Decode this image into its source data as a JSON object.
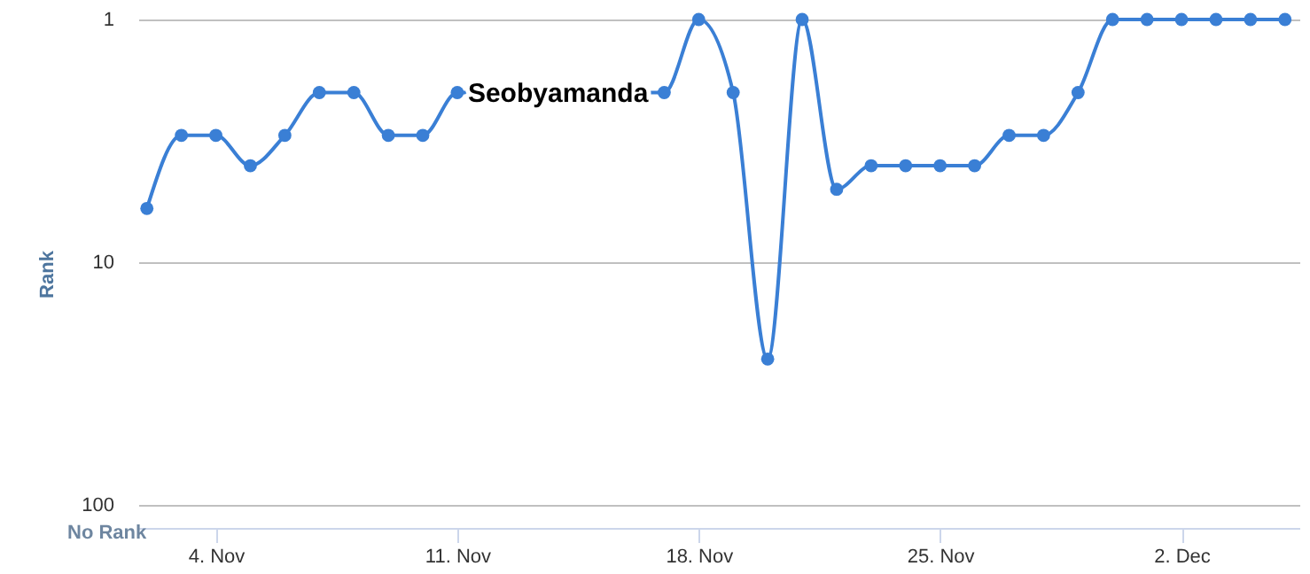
{
  "chart_data": {
    "type": "line",
    "ylabel": "Rank",
    "annotations": [
      "No Rank"
    ],
    "x": [
      "--11-02",
      "--11-03",
      "--11-04",
      "--11-05",
      "--11-06",
      "--11-07",
      "--11-08",
      "--11-09",
      "--11-10",
      "--11-11",
      "--11-12",
      "--11-13",
      "--11-14",
      "--11-15",
      "--11-16",
      "--11-17",
      "--11-18",
      "--11-19",
      "--11-20",
      "--11-21",
      "--11-22",
      "--11-23",
      "--11-24",
      "--11-25",
      "--11-26",
      "--11-27",
      "--11-28",
      "--11-29",
      "--11-30",
      "--12-01",
      "--12-02",
      "--12-03",
      "--12-04",
      "--12-05"
    ],
    "series": [
      {
        "name": "Seobyamanda",
        "color": "#3a7fd5",
        "values": [
          6,
          3,
          3,
          4,
          3,
          2,
          2,
          3,
          3,
          2,
          2,
          2,
          2,
          2,
          2,
          2,
          1,
          2,
          25,
          1,
          5,
          4,
          4,
          4,
          4,
          3,
          3,
          2,
          1,
          1,
          1,
          1,
          1,
          1
        ]
      }
    ],
    "xlim": [
      "--11-01T18:00",
      "--12-05T10:00"
    ],
    "xticks": [
      {
        "value": "--11-04",
        "label": "4. Nov"
      },
      {
        "value": "--11-11",
        "label": "11. Nov"
      },
      {
        "value": "--11-18",
        "label": "18. Nov"
      },
      {
        "value": "--11-25",
        "label": "25. Nov"
      },
      {
        "value": "--12-02",
        "label": "2. Dec"
      }
    ],
    "log": "y",
    "ylim": [
      124,
      1
    ],
    "yticks": [
      1,
      10,
      100
    ],
    "grid": "y",
    "marker": "circle",
    "line_style": "solid"
  }
}
